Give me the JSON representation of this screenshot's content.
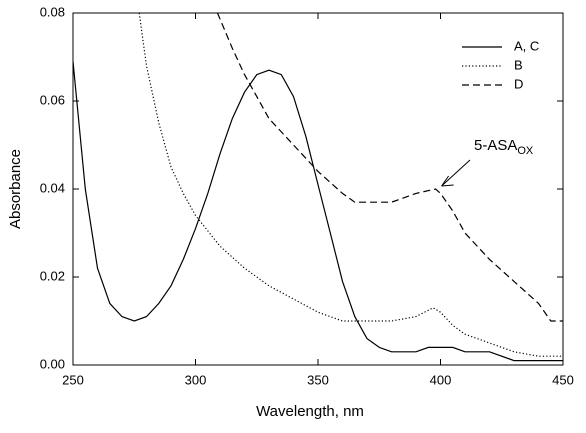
{
  "chart_data": {
    "type": "line",
    "x_label": "Wavelength, nm",
    "y_label": "Absorbance",
    "xlim": [
      250,
      450
    ],
    "xticks": [
      250,
      300,
      350,
      400,
      450
    ],
    "ylim": [
      0,
      0.08
    ],
    "yticks": [
      {
        "value": 0,
        "label": "0.00"
      },
      0.02,
      0.04,
      0.06,
      0.08
    ],
    "legend": "upper right",
    "annotation": {
      "text": "5-ASA",
      "subscript": "OX",
      "x": 398,
      "y": 0.04
    },
    "series": [
      {
        "name": "A, C",
        "color": "#000000",
        "dash": "solid",
        "x": [
          250,
          255,
          260,
          265,
          270,
          275,
          280,
          285,
          290,
          295,
          300,
          305,
          310,
          315,
          320,
          325,
          330,
          335,
          340,
          345,
          350,
          355,
          360,
          365,
          370,
          375,
          380,
          390,
          395,
          400,
          405,
          410,
          420,
          430,
          440,
          450
        ],
        "values": [
          0.069,
          0.04,
          0.022,
          0.014,
          0.011,
          0.01,
          0.011,
          0.014,
          0.018,
          0.024,
          0.031,
          0.039,
          0.048,
          0.056,
          0.062,
          0.066,
          0.067,
          0.066,
          0.061,
          0.052,
          0.041,
          0.03,
          0.019,
          0.011,
          0.006,
          0.004,
          0.003,
          0.003,
          0.004,
          0.004,
          0.004,
          0.003,
          0.003,
          0.001,
          0.001,
          0.001
        ]
      },
      {
        "name": "B",
        "color": "#000000",
        "dash": "dotted",
        "x": [
          277,
          280,
          285,
          290,
          295,
          300,
          310,
          320,
          330,
          340,
          350,
          360,
          370,
          380,
          390,
          397,
          400,
          405,
          410,
          420,
          430,
          440,
          450
        ],
        "values": [
          0.08,
          0.068,
          0.055,
          0.045,
          0.039,
          0.034,
          0.027,
          0.022,
          0.018,
          0.015,
          0.012,
          0.01,
          0.01,
          0.01,
          0.011,
          0.013,
          0.012,
          0.009,
          0.007,
          0.005,
          0.003,
          0.002,
          0.002
        ]
      },
      {
        "name": "D",
        "color": "#000000",
        "dash": "dashed",
        "x": [
          309,
          315,
          320,
          325,
          330,
          340,
          350,
          360,
          365,
          370,
          380,
          390,
          398,
          400,
          405,
          410,
          420,
          430,
          440,
          445,
          450
        ],
        "values": [
          0.08,
          0.072,
          0.066,
          0.061,
          0.056,
          0.05,
          0.044,
          0.039,
          0.037,
          0.037,
          0.037,
          0.039,
          0.04,
          0.039,
          0.035,
          0.03,
          0.024,
          0.019,
          0.014,
          0.01,
          0.01
        ]
      }
    ]
  }
}
